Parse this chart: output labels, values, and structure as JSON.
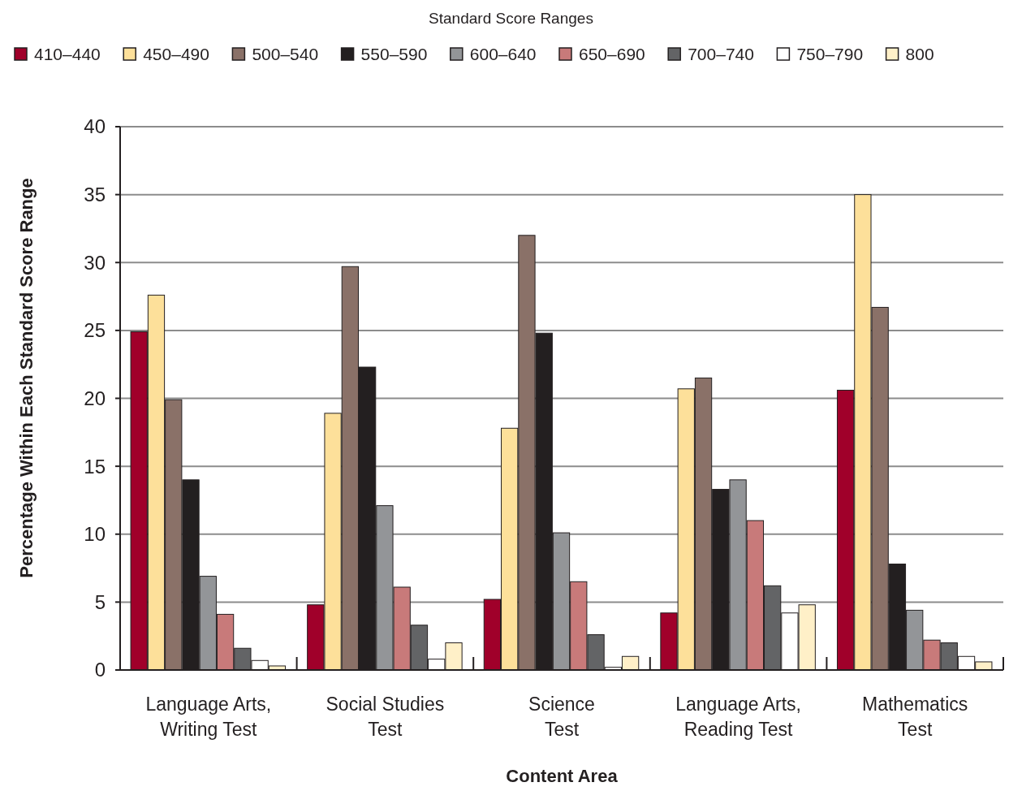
{
  "chart_data": {
    "type": "bar",
    "xlabel": "Content Area",
    "ylabel": "Percentage Within Each Standard Score Range",
    "legend_title": "Standard Score Ranges",
    "categories": [
      "Language Arts,\nWriting Test",
      "Social Studies\nTest",
      "Science\nTest",
      "Language Arts,\nReading Test",
      "Mathematics\nTest"
    ],
    "series": [
      {
        "name": "410–440",
        "color": "#a0002a",
        "values": [
          24.9,
          4.8,
          5.2,
          4.2,
          20.6
        ]
      },
      {
        "name": "450–490",
        "color": "#fde09a",
        "values": [
          27.6,
          18.9,
          17.8,
          20.7,
          35.0
        ]
      },
      {
        "name": "500–540",
        "color": "#8a7168",
        "values": [
          19.9,
          29.7,
          32.0,
          21.5,
          26.7
        ]
      },
      {
        "name": "550–590",
        "color": "#231f20",
        "values": [
          14.0,
          22.3,
          24.8,
          13.3,
          7.8
        ]
      },
      {
        "name": "600–640",
        "color": "#939598",
        "values": [
          6.9,
          12.1,
          10.1,
          14.0,
          4.4
        ]
      },
      {
        "name": "650–690",
        "color": "#c87a7a",
        "values": [
          4.1,
          6.1,
          6.5,
          11.0,
          2.2
        ]
      },
      {
        "name": "700–740",
        "color": "#636466",
        "values": [
          1.6,
          3.3,
          2.6,
          6.2,
          2.0
        ]
      },
      {
        "name": "750–790",
        "color": "#ffffff",
        "values": [
          0.7,
          0.8,
          0.2,
          4.2,
          1.0
        ]
      },
      {
        "name": "800",
        "color": "#fff0c8",
        "values": [
          0.3,
          2.0,
          1.0,
          4.8,
          0.6
        ]
      }
    ],
    "ylim": [
      0,
      40
    ],
    "yticks": [
      0,
      5,
      10,
      15,
      20,
      25,
      30,
      35,
      40
    ],
    "grid": "y",
    "legend": "top"
  }
}
